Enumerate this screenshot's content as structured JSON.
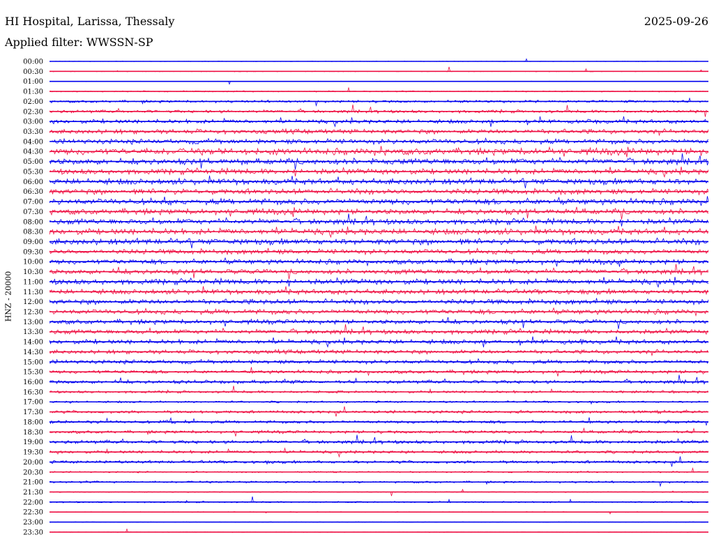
{
  "header": {
    "station": "HI Hospital, Larissa, Thessaly",
    "date": "2025-09-26",
    "filter": "Applied filter: WWSSN-SP"
  },
  "chart_data": {
    "type": "line",
    "title": "HI Hospital, Larissa, Thessaly",
    "subtitle": "Applied filter: WWSSN-SP",
    "ylabel": "HNZ - 20000",
    "xlabel": "",
    "grid": false,
    "legend": "none",
    "colors": {
      "even_rows": "#0000ee",
      "odd_rows": "#ee1144"
    },
    "rows": [
      "00:00",
      "00:30",
      "01:00",
      "01:30",
      "02:00",
      "02:30",
      "03:00",
      "03:30",
      "04:00",
      "04:30",
      "05:00",
      "05:30",
      "06:00",
      "06:30",
      "07:00",
      "07:30",
      "08:00",
      "08:30",
      "09:00",
      "09:30",
      "10:00",
      "10:30",
      "11:00",
      "11:30",
      "12:00",
      "12:30",
      "13:00",
      "13:30",
      "14:00",
      "14:30",
      "15:00",
      "15:30",
      "16:00",
      "16:30",
      "17:00",
      "17:30",
      "18:00",
      "18:30",
      "19:00",
      "19:30",
      "20:00",
      "20:30",
      "21:00",
      "21:30",
      "22:00",
      "22:30",
      "23:00",
      "23:30"
    ],
    "activity_level": [
      0.05,
      0.08,
      0.06,
      0.12,
      0.25,
      0.3,
      0.4,
      0.45,
      0.5,
      0.65,
      0.6,
      0.55,
      0.6,
      0.55,
      0.6,
      0.55,
      0.55,
      0.6,
      0.6,
      0.5,
      0.5,
      0.5,
      0.55,
      0.5,
      0.5,
      0.5,
      0.45,
      0.45,
      0.45,
      0.4,
      0.4,
      0.35,
      0.35,
      0.25,
      0.2,
      0.3,
      0.3,
      0.3,
      0.35,
      0.3,
      0.3,
      0.15,
      0.2,
      0.1,
      0.15,
      0.08,
      0.06,
      0.06
    ]
  }
}
